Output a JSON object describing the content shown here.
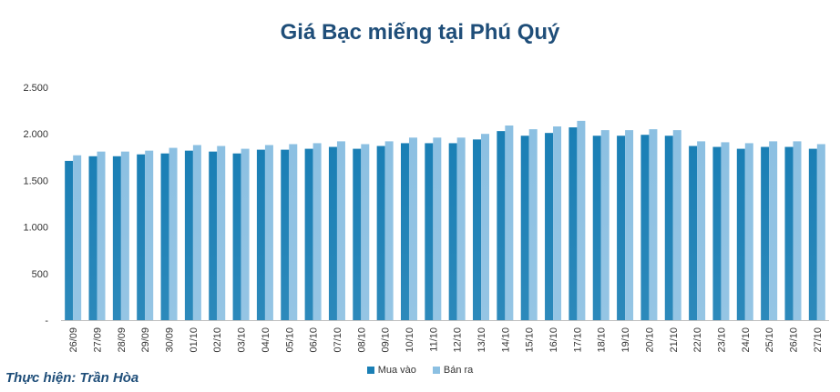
{
  "chart_data": {
    "type": "bar",
    "title": "Giá Bạc miếng tại Phú Quý",
    "categories": [
      "26/09",
      "27/09",
      "28/09",
      "29/09",
      "30/09",
      "01/10",
      "02/10",
      "03/10",
      "04/10",
      "05/10",
      "06/10",
      "07/10",
      "08/10",
      "09/10",
      "10/10",
      "11/10",
      "12/10",
      "13/10",
      "14/10",
      "15/10",
      "16/10",
      "17/10",
      "18/10",
      "19/10",
      "20/10",
      "21/10",
      "22/10",
      "23/10",
      "24/10",
      "25/10",
      "26/10",
      "27/10"
    ],
    "series": [
      {
        "name": "Mua vào",
        "color": "#1a7fb5",
        "values": [
          1710,
          1760,
          1760,
          1780,
          1790,
          1820,
          1810,
          1790,
          1830,
          1830,
          1840,
          1860,
          1840,
          1870,
          1900,
          1900,
          1900,
          1940,
          2030,
          1980,
          2010,
          2070,
          1980,
          1980,
          1990,
          1980,
          1870,
          1860,
          1840,
          1860,
          1860,
          1840
        ]
      },
      {
        "name": "Bán ra",
        "color": "#8cc0e2",
        "values": [
          1770,
          1810,
          1810,
          1820,
          1850,
          1880,
          1870,
          1840,
          1880,
          1890,
          1900,
          1920,
          1890,
          1920,
          1960,
          1960,
          1960,
          2000,
          2090,
          2050,
          2080,
          2140,
          2040,
          2040,
          2050,
          2040,
          1920,
          1910,
          1900,
          1920,
          1920,
          1890
        ]
      }
    ],
    "yticks": [
      "-",
      "500",
      "1.000",
      "1.500",
      "2.000",
      "2.500"
    ],
    "ylim": [
      0,
      2500
    ],
    "legend_position": "bottom",
    "grid": false
  },
  "credit": "Thực hiện: Trần Hòa"
}
